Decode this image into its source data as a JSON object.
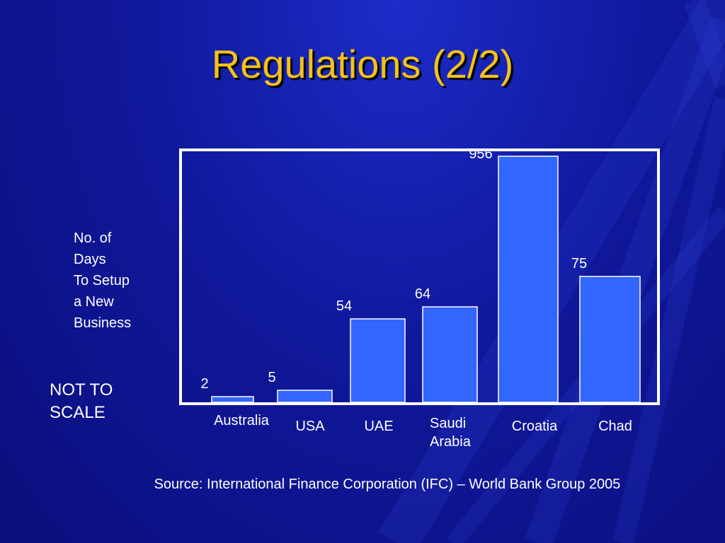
{
  "slide": {
    "title": "Regulations (2/2)",
    "y_axis_label": "No. of\nDays\nTo Setup\na New\nBusiness",
    "scale_note": "NOT TO\nSCALE",
    "source": "Source: International Finance Corporation (IFC) – World Bank Group 2005"
  },
  "colors": {
    "background": "#10189c",
    "title": "#f3c21a",
    "bar": "#3366ff",
    "frame": "#ffffff",
    "text": "#ffffff"
  },
  "chart_data": {
    "type": "bar",
    "title": "",
    "xlabel": "",
    "ylabel": "No. of Days To Setup a New Business",
    "scale": "not to scale",
    "categories": [
      "Australia",
      "USA",
      "UAE",
      "Saudi Arabia",
      "Croatia",
      "Chad"
    ],
    "category_labels": [
      "Australia",
      "USA",
      "UAE",
      "Saudi\nArabia",
      "Croatia",
      "Chad"
    ],
    "values": [
      2,
      5,
      54,
      64,
      956,
      75
    ],
    "data_labels": [
      "2",
      "5",
      "54",
      "64",
      "956",
      "75"
    ],
    "grid": false,
    "legend": "none"
  }
}
